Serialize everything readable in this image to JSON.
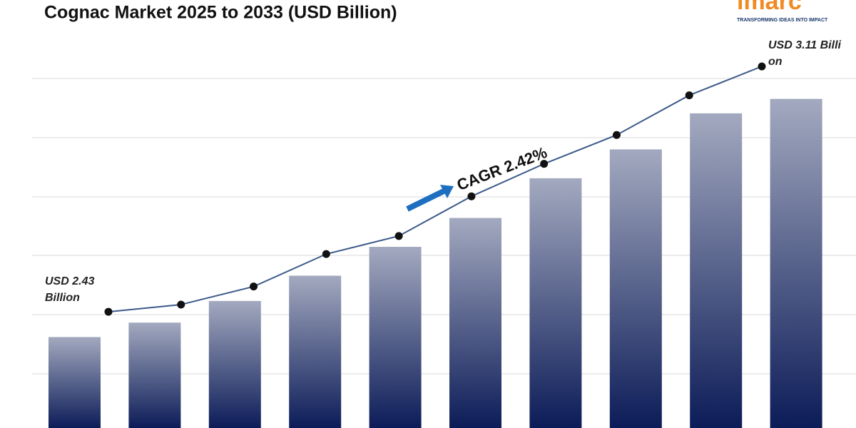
{
  "chart_data": {
    "type": "bar",
    "title": "Cognac Market 2025 to 2033 (USD Billion)",
    "values": [
      2.36,
      2.4,
      2.46,
      2.53,
      2.61,
      2.69,
      2.8,
      2.88,
      2.98,
      3.02
    ],
    "line": {
      "values": [
        2.43,
        2.45,
        2.5,
        2.59,
        2.64,
        2.75,
        2.84,
        2.92,
        3.03,
        3.11
      ],
      "color": "#3d5a8a"
    },
    "ylim": [
      2.1,
      3.3
    ],
    "bar_color": [
      "#a3a9bf",
      "#0c1c58"
    ],
    "annotations": {
      "start": [
        "USD 2.43",
        "Billion"
      ],
      "end": [
        "USD 3.11 Billi",
        "on"
      ],
      "cagr": "CAGR  2.42%"
    },
    "logo": {
      "name": "imarc",
      "tagline": "TRANSFORMING IDEAS INTO IMPACT"
    }
  }
}
